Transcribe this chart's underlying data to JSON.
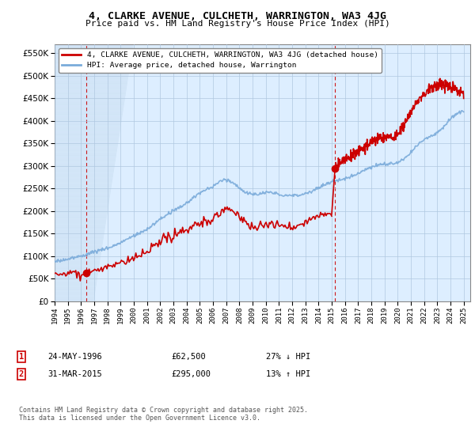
{
  "title": "4, CLARKE AVENUE, CULCHETH, WARRINGTON, WA3 4JG",
  "subtitle": "Price paid vs. HM Land Registry's House Price Index (HPI)",
  "ylabel_ticks": [
    0,
    50000,
    100000,
    150000,
    200000,
    250000,
    300000,
    350000,
    400000,
    450000,
    500000,
    550000
  ],
  "ylim": [
    0,
    570000
  ],
  "xlim_start": 1994.0,
  "xlim_end": 2025.5,
  "sale1_date": 1996.39,
  "sale1_price": 62500,
  "sale1_label": "24-MAY-1996",
  "sale1_pct": "27% ↓ HPI",
  "sale2_date": 2015.25,
  "sale2_price": 295000,
  "sale2_label": "31-MAR-2015",
  "sale2_pct": "13% ↑ HPI",
  "legend_line1": "4, CLARKE AVENUE, CULCHETH, WARRINGTON, WA3 4JG (detached house)",
  "legend_line2": "HPI: Average price, detached house, Warrington",
  "footer": "Contains HM Land Registry data © Crown copyright and database right 2025.\nThis data is licensed under the Open Government Licence v3.0.",
  "red_color": "#cc0000",
  "blue_color": "#7aabda",
  "plot_bg_color": "#ddeeff",
  "background_color": "#ffffff",
  "grid_color": "#b0c8e0"
}
